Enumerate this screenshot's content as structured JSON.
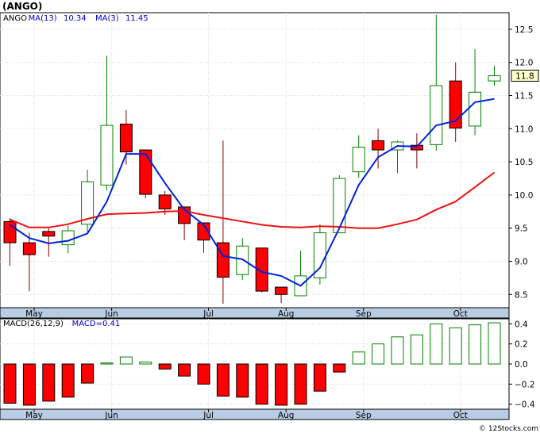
{
  "chart_data": [
    {
      "type": "candlestick",
      "title": "(ANGO)",
      "legend": [
        {
          "label": "ANGO",
          "color": "#000000"
        },
        {
          "label": "MA(13)",
          "value": "10.34",
          "color": "#0000cc"
        },
        {
          "label": "MA(3)",
          "value": "11.45",
          "color": "#0000cc"
        }
      ],
      "last_price_label": "11.8",
      "ylim": [
        8.3,
        12.75
      ],
      "yticks": [
        "8.5",
        "9.0",
        "9.5",
        "10.0",
        "10.5",
        "11.0",
        "11.5",
        "12.0",
        "12.5"
      ],
      "months": [
        "May",
        "Jun",
        "Jul",
        "Aug",
        "Sep",
        "Oct"
      ],
      "month_index": [
        1.25,
        5.25,
        10.25,
        14.25,
        18.25,
        23.25
      ],
      "candles": [
        {
          "o": 9.6,
          "h": 9.65,
          "l": 8.93,
          "c": 9.28
        },
        {
          "o": 9.28,
          "h": 9.43,
          "l": 8.55,
          "c": 9.1
        },
        {
          "o": 9.45,
          "h": 9.5,
          "l": 9.07,
          "c": 9.38
        },
        {
          "o": 9.25,
          "h": 9.54,
          "l": 9.12,
          "c": 9.46
        },
        {
          "o": 9.56,
          "h": 10.38,
          "l": 9.44,
          "c": 10.2
        },
        {
          "o": 10.15,
          "h": 12.1,
          "l": 10.07,
          "c": 11.05
        },
        {
          "o": 11.07,
          "h": 11.28,
          "l": 10.46,
          "c": 10.65
        },
        {
          "o": 10.68,
          "h": 10.68,
          "l": 9.95,
          "c": 10.01
        },
        {
          "o": 10.0,
          "h": 10.06,
          "l": 9.7,
          "c": 9.79
        },
        {
          "o": 9.82,
          "h": 9.82,
          "l": 9.32,
          "c": 9.57
        },
        {
          "o": 9.58,
          "h": 9.58,
          "l": 9.13,
          "c": 9.32
        },
        {
          "o": 9.28,
          "h": 10.82,
          "l": 8.36,
          "c": 8.76
        },
        {
          "o": 8.8,
          "h": 9.35,
          "l": 8.72,
          "c": 9.23
        },
        {
          "o": 9.2,
          "h": 9.2,
          "l": 8.53,
          "c": 8.55
        },
        {
          "o": 8.61,
          "h": 8.61,
          "l": 8.37,
          "c": 8.5
        },
        {
          "o": 8.48,
          "h": 9.16,
          "l": 8.48,
          "c": 8.78
        },
        {
          "o": 8.75,
          "h": 9.56,
          "l": 8.65,
          "c": 9.43
        },
        {
          "o": 9.43,
          "h": 10.3,
          "l": 9.43,
          "c": 10.25
        },
        {
          "o": 10.35,
          "h": 10.9,
          "l": 10.26,
          "c": 10.72
        },
        {
          "o": 10.82,
          "h": 11.0,
          "l": 10.4,
          "c": 10.68
        },
        {
          "o": 10.68,
          "h": 10.82,
          "l": 10.33,
          "c": 10.8
        },
        {
          "o": 10.75,
          "h": 10.93,
          "l": 10.4,
          "c": 10.68
        },
        {
          "o": 10.76,
          "h": 12.72,
          "l": 10.67,
          "c": 11.65
        },
        {
          "o": 11.72,
          "h": 12.0,
          "l": 10.8,
          "c": 11.01
        },
        {
          "o": 11.04,
          "h": 12.2,
          "l": 10.9,
          "c": 11.55
        },
        {
          "o": 11.72,
          "h": 11.95,
          "l": 11.65,
          "c": 11.8
        }
      ],
      "ma3": [
        9.55,
        9.35,
        9.27,
        9.31,
        9.42,
        9.9,
        10.62,
        10.62,
        10.18,
        9.78,
        9.55,
        9.08,
        9.03,
        8.84,
        8.78,
        8.63,
        8.9,
        9.5,
        10.15,
        10.57,
        10.74,
        10.73,
        11.05,
        11.12,
        11.4,
        11.45
      ],
      "ma13": [
        9.63,
        9.51,
        9.51,
        9.56,
        9.64,
        9.71,
        9.72,
        9.73,
        9.75,
        9.76,
        9.7,
        9.65,
        9.6,
        9.55,
        9.52,
        9.51,
        9.53,
        9.52,
        9.5,
        9.5,
        9.56,
        9.63,
        9.78,
        9.9,
        10.12,
        10.34
      ]
    },
    {
      "type": "bar",
      "title": "MACD",
      "legend": [
        {
          "label": "MACD(26,12,9)",
          "color": "#000000"
        },
        {
          "label": "MACD=0.41",
          "color": "#0000cc"
        }
      ],
      "ylim": [
        -0.45,
        0.45
      ],
      "yticks": [
        "0.4",
        "0.2",
        "0.0",
        "−0.2",
        "−0.4"
      ],
      "values": [
        -0.39,
        -0.41,
        -0.37,
        -0.33,
        -0.19,
        0.01,
        0.07,
        0.02,
        -0.05,
        -0.12,
        -0.2,
        -0.32,
        -0.33,
        -0.4,
        -0.41,
        -0.4,
        -0.27,
        -0.08,
        0.12,
        0.2,
        0.27,
        0.29,
        0.4,
        0.36,
        0.39,
        0.41
      ]
    }
  ],
  "footer": "© 12Stocks.com"
}
